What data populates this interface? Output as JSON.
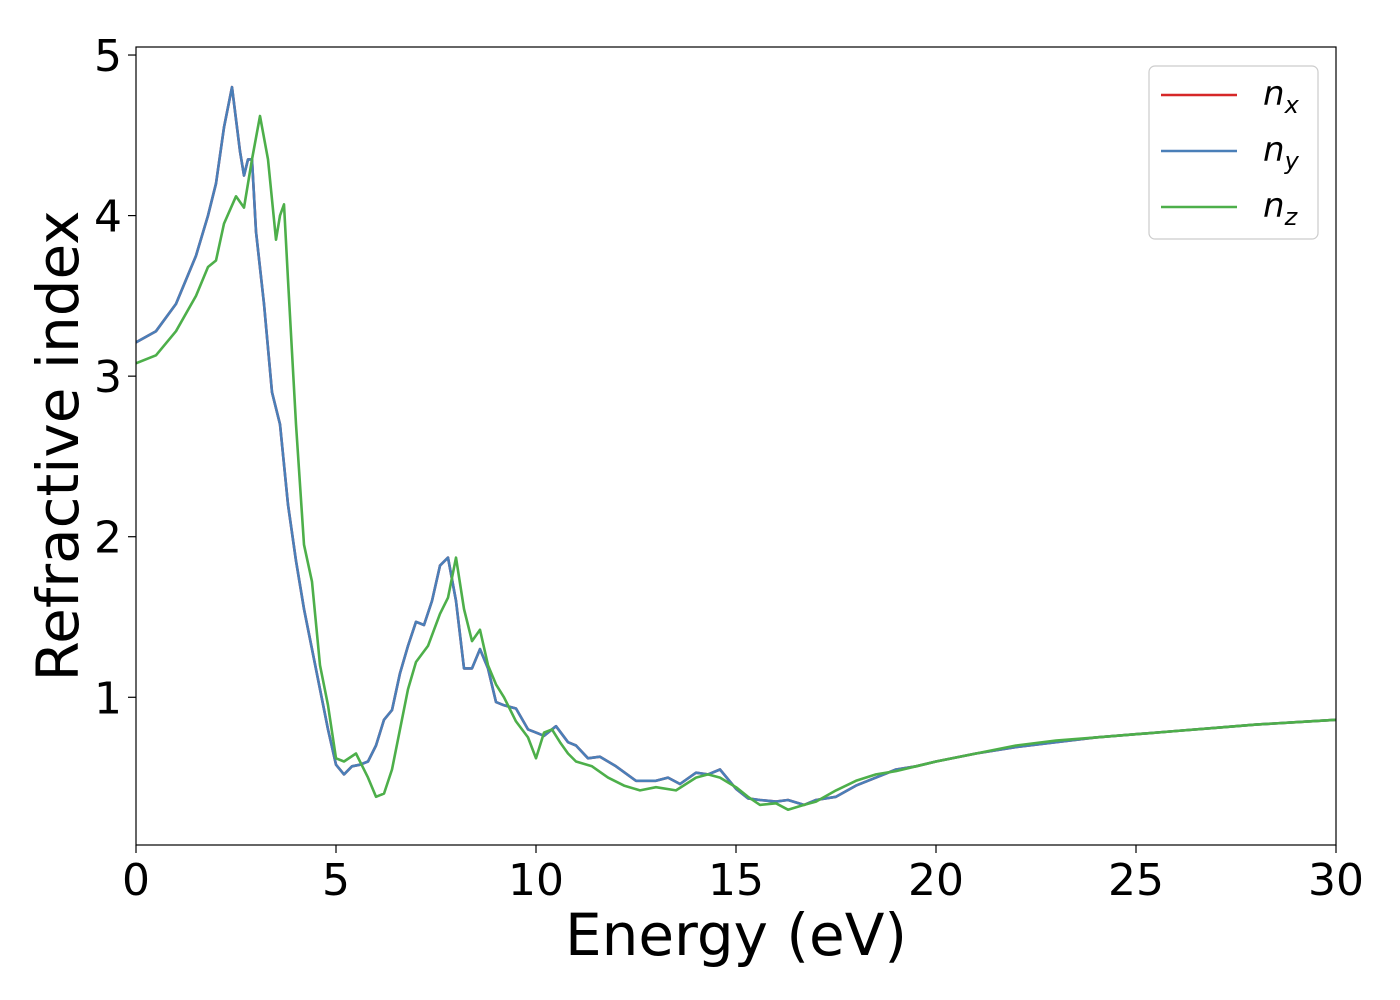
{
  "chart_data": {
    "type": "line",
    "title": "",
    "xlabel": "Energy (eV)",
    "ylabel": "Refractive index",
    "xlim": [
      0,
      30
    ],
    "ylim": [
      0.08,
      5.05
    ],
    "xticks": [
      0,
      5,
      10,
      15,
      20,
      25,
      30
    ],
    "xtick_labels": [
      "0",
      "5",
      "10",
      "15",
      "20",
      "25",
      "30"
    ],
    "yticks": [
      1,
      2,
      3,
      4,
      5
    ],
    "ytick_labels": [
      "1",
      "2",
      "3",
      "4",
      "5"
    ],
    "grid": false,
    "legend": {
      "placement": "top-right"
    },
    "series": [
      {
        "name": "n_x",
        "label_base": "n",
        "label_sub": "x",
        "color": "#d62728",
        "x": [
          0,
          0.5,
          1.0,
          1.5,
          1.8,
          2.0,
          2.2,
          2.4,
          2.5,
          2.6,
          2.7,
          2.8,
          2.9,
          3.0,
          3.2,
          3.4,
          3.6,
          3.8,
          4.0,
          4.2,
          4.4,
          4.6,
          4.8,
          5.0,
          5.2,
          5.4,
          5.6,
          5.8,
          6.0,
          6.2,
          6.4,
          6.6,
          6.8,
          7.0,
          7.2,
          7.4,
          7.6,
          7.8,
          8.0,
          8.2,
          8.4,
          8.6,
          8.8,
          9.0,
          9.2,
          9.5,
          9.8,
          10.0,
          10.2,
          10.5,
          10.8,
          11.0,
          11.3,
          11.6,
          12.0,
          12.5,
          13.0,
          13.3,
          13.6,
          14.0,
          14.3,
          14.6,
          15.0,
          15.3,
          15.6,
          16.0,
          16.3,
          16.7,
          17.0,
          17.5,
          18.0,
          18.5,
          19.0,
          19.5,
          20.0,
          21.0,
          22.0,
          23.0,
          24.0,
          25.0,
          26.0,
          27.0,
          28.0,
          29.0,
          30.0
        ],
        "y": [
          3.21,
          3.28,
          3.45,
          3.75,
          4.0,
          4.2,
          4.55,
          4.8,
          4.6,
          4.4,
          4.25,
          4.35,
          4.35,
          3.9,
          3.45,
          2.9,
          2.7,
          2.2,
          1.85,
          1.55,
          1.3,
          1.05,
          0.8,
          0.58,
          0.52,
          0.57,
          0.58,
          0.6,
          0.7,
          0.86,
          0.92,
          1.15,
          1.32,
          1.47,
          1.45,
          1.6,
          1.82,
          1.87,
          1.6,
          1.18,
          1.18,
          1.3,
          1.18,
          0.97,
          0.95,
          0.93,
          0.8,
          0.78,
          0.76,
          0.82,
          0.72,
          0.7,
          0.62,
          0.63,
          0.57,
          0.48,
          0.48,
          0.5,
          0.46,
          0.53,
          0.52,
          0.55,
          0.43,
          0.37,
          0.36,
          0.35,
          0.36,
          0.33,
          0.36,
          0.38,
          0.45,
          0.5,
          0.55,
          0.57,
          0.6,
          0.65,
          0.69,
          0.72,
          0.75,
          0.77,
          0.79,
          0.81,
          0.83,
          0.845,
          0.86
        ]
      },
      {
        "name": "n_y",
        "label_base": "n",
        "label_sub": "y",
        "color": "#4a7fb8",
        "x": [
          0,
          0.5,
          1.0,
          1.5,
          1.8,
          2.0,
          2.2,
          2.4,
          2.5,
          2.6,
          2.7,
          2.8,
          2.9,
          3.0,
          3.2,
          3.4,
          3.6,
          3.8,
          4.0,
          4.2,
          4.4,
          4.6,
          4.8,
          5.0,
          5.2,
          5.4,
          5.6,
          5.8,
          6.0,
          6.2,
          6.4,
          6.6,
          6.8,
          7.0,
          7.2,
          7.4,
          7.6,
          7.8,
          8.0,
          8.2,
          8.4,
          8.6,
          8.8,
          9.0,
          9.2,
          9.5,
          9.8,
          10.0,
          10.2,
          10.5,
          10.8,
          11.0,
          11.3,
          11.6,
          12.0,
          12.5,
          13.0,
          13.3,
          13.6,
          14.0,
          14.3,
          14.6,
          15.0,
          15.3,
          15.6,
          16.0,
          16.3,
          16.7,
          17.0,
          17.5,
          18.0,
          18.5,
          19.0,
          19.5,
          20.0,
          21.0,
          22.0,
          23.0,
          24.0,
          25.0,
          26.0,
          27.0,
          28.0,
          29.0,
          30.0
        ],
        "y": [
          3.21,
          3.28,
          3.45,
          3.75,
          4.0,
          4.2,
          4.55,
          4.8,
          4.6,
          4.4,
          4.25,
          4.35,
          4.35,
          3.9,
          3.45,
          2.9,
          2.7,
          2.2,
          1.85,
          1.55,
          1.3,
          1.05,
          0.8,
          0.58,
          0.52,
          0.57,
          0.58,
          0.6,
          0.7,
          0.86,
          0.92,
          1.15,
          1.32,
          1.47,
          1.45,
          1.6,
          1.82,
          1.87,
          1.6,
          1.18,
          1.18,
          1.3,
          1.18,
          0.97,
          0.95,
          0.93,
          0.8,
          0.78,
          0.76,
          0.82,
          0.72,
          0.7,
          0.62,
          0.63,
          0.57,
          0.48,
          0.48,
          0.5,
          0.46,
          0.53,
          0.52,
          0.55,
          0.43,
          0.37,
          0.36,
          0.35,
          0.36,
          0.33,
          0.36,
          0.38,
          0.45,
          0.5,
          0.55,
          0.57,
          0.6,
          0.65,
          0.69,
          0.72,
          0.75,
          0.77,
          0.79,
          0.81,
          0.83,
          0.845,
          0.86
        ]
      },
      {
        "name": "n_z",
        "label_base": "n",
        "label_sub": "z",
        "color": "#4daf4a",
        "x": [
          0,
          0.5,
          1.0,
          1.5,
          1.8,
          2.0,
          2.2,
          2.5,
          2.7,
          2.9,
          3.1,
          3.3,
          3.5,
          3.6,
          3.7,
          3.8,
          4.0,
          4.2,
          4.4,
          4.6,
          4.8,
          5.0,
          5.2,
          5.5,
          5.8,
          6.0,
          6.2,
          6.4,
          6.6,
          6.8,
          7.0,
          7.3,
          7.6,
          7.8,
          8.0,
          8.2,
          8.4,
          8.6,
          8.8,
          9.0,
          9.2,
          9.5,
          9.8,
          10.0,
          10.2,
          10.4,
          10.6,
          10.8,
          11.0,
          11.4,
          11.8,
          12.2,
          12.6,
          13.0,
          13.5,
          14.0,
          14.3,
          14.6,
          15.0,
          15.3,
          15.6,
          16.0,
          16.3,
          16.7,
          17.0,
          17.5,
          18.0,
          18.5,
          19.0,
          19.5,
          20.0,
          21.0,
          22.0,
          23.0,
          24.0,
          25.0,
          26.0,
          27.0,
          28.0,
          29.0,
          30.0
        ],
        "y": [
          3.08,
          3.13,
          3.28,
          3.5,
          3.68,
          3.72,
          3.95,
          4.12,
          4.05,
          4.35,
          4.62,
          4.35,
          3.85,
          4.0,
          4.07,
          3.6,
          2.7,
          1.95,
          1.72,
          1.2,
          0.95,
          0.62,
          0.6,
          0.65,
          0.5,
          0.38,
          0.4,
          0.55,
          0.8,
          1.05,
          1.22,
          1.32,
          1.52,
          1.62,
          1.87,
          1.55,
          1.35,
          1.42,
          1.2,
          1.08,
          1.0,
          0.85,
          0.75,
          0.62,
          0.78,
          0.8,
          0.72,
          0.65,
          0.6,
          0.57,
          0.5,
          0.45,
          0.42,
          0.44,
          0.42,
          0.5,
          0.52,
          0.5,
          0.44,
          0.38,
          0.33,
          0.34,
          0.3,
          0.33,
          0.35,
          0.42,
          0.48,
          0.52,
          0.54,
          0.57,
          0.6,
          0.65,
          0.7,
          0.73,
          0.75,
          0.77,
          0.79,
          0.81,
          0.83,
          0.845,
          0.86
        ]
      }
    ]
  }
}
